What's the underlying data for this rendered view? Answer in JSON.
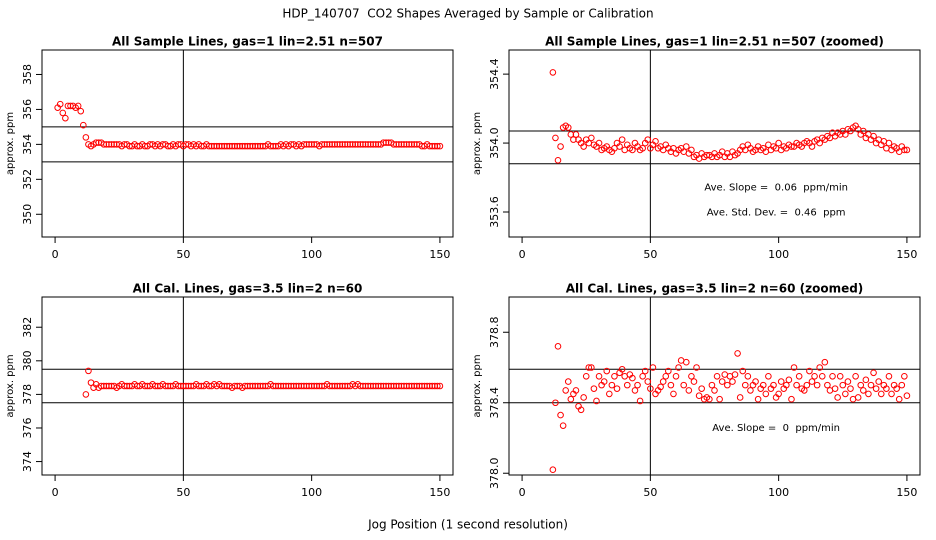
{
  "title": "HDP_140707  CO2 Shapes Averaged by Sample or Calibration",
  "x_axis_label": "Jog Position (1 second resolution)",
  "chart_data": [
    {
      "type": "scatter",
      "title": "All Sample Lines, gas=1 lin=2.51 n=507",
      "y_label": "approx. ppm",
      "color": "red",
      "xlim": [
        -5.1,
        155.1
      ],
      "ylim": [
        348.7,
        359.4
      ],
      "xticks": [
        0,
        50,
        100,
        150
      ],
      "yticks": [
        350,
        352,
        354,
        356,
        358
      ],
      "hlines": [
        355,
        353
      ],
      "vline": 50,
      "annotations": [],
      "x": [
        1,
        2,
        3,
        4,
        5,
        6,
        7,
        8,
        9,
        10,
        11,
        12,
        13,
        14,
        15,
        16,
        17,
        18,
        19,
        20,
        21,
        22,
        23,
        24,
        25,
        26,
        27,
        28,
        29,
        30,
        31,
        32,
        33,
        34,
        35,
        36,
        37,
        38,
        39,
        40,
        41,
        42,
        43,
        44,
        45,
        46,
        47,
        48,
        49,
        50,
        51,
        52,
        53,
        54,
        55,
        56,
        57,
        58,
        59,
        60,
        61,
        62,
        63,
        64,
        65,
        66,
        67,
        68,
        69,
        70,
        71,
        72,
        73,
        74,
        75,
        76,
        77,
        78,
        79,
        80,
        81,
        82,
        83,
        84,
        85,
        86,
        87,
        88,
        89,
        90,
        91,
        92,
        93,
        94,
        95,
        96,
        97,
        98,
        99,
        100,
        101,
        102,
        103,
        104,
        105,
        106,
        107,
        108,
        109,
        110,
        111,
        112,
        113,
        114,
        115,
        116,
        117,
        118,
        119,
        120,
        121,
        122,
        123,
        124,
        125,
        126,
        127,
        128,
        129,
        130,
        131,
        132,
        133,
        134,
        135,
        136,
        137,
        138,
        139,
        140,
        141,
        142,
        143,
        144,
        145,
        146,
        147,
        148,
        149,
        150
      ],
      "values": [
        356.1,
        356.3,
        355.8,
        355.5,
        356.2,
        356.2,
        356.2,
        356.1,
        356.2,
        355.9,
        355.1,
        354.4,
        354.0,
        353.9,
        354.0,
        354.1,
        354.1,
        354.1,
        354.0,
        354.0,
        354.0,
        354.0,
        354.0,
        354.0,
        354.0,
        353.9,
        354.0,
        354.0,
        353.9,
        353.9,
        354.0,
        353.9,
        353.9,
        354.0,
        353.9,
        353.9,
        354.0,
        354.0,
        353.9,
        354.0,
        353.9,
        354.0,
        354.0,
        353.9,
        353.9,
        354.0,
        353.9,
        354.0,
        354.0,
        353.9,
        354.0,
        354.0,
        353.9,
        354.0,
        353.9,
        354.0,
        353.9,
        353.9,
        354.0,
        353.9,
        353.9,
        353.9,
        353.9,
        353.9,
        353.9,
        353.9,
        353.9,
        353.9,
        353.9,
        353.9,
        353.9,
        353.9,
        353.9,
        353.9,
        353.9,
        353.9,
        353.9,
        353.9,
        353.9,
        353.9,
        353.9,
        353.9,
        354.0,
        353.9,
        353.9,
        353.9,
        353.9,
        354.0,
        353.9,
        354.0,
        353.9,
        354.0,
        354.0,
        353.9,
        354.0,
        353.9,
        354.0,
        354.0,
        354.0,
        354.0,
        354.0,
        354.0,
        353.9,
        354.0,
        354.0,
        354.0,
        354.0,
        354.0,
        354.0,
        354.0,
        354.0,
        354.0,
        354.0,
        354.0,
        354.0,
        354.0,
        354.0,
        354.0,
        354.0,
        354.0,
        354.0,
        354.0,
        354.0,
        354.0,
        354.0,
        354.0,
        354.0,
        354.1,
        354.1,
        354.1,
        354.1,
        354.0,
        354.0,
        354.0,
        354.0,
        354.0,
        354.0,
        354.0,
        354.0,
        354.0,
        354.0,
        354.0,
        353.9,
        353.9,
        354.0,
        353.9,
        353.9,
        353.9,
        353.9,
        353.9
      ]
    },
    {
      "type": "scatter",
      "title": "All Sample Lines, gas=1 lin=2.51 n=507 (zoomed)",
      "y_label": "approx. ppm",
      "color": "red",
      "xlim": [
        -5.1,
        155.1
      ],
      "ylim": [
        353.455,
        354.54
      ],
      "xticks": [
        0,
        50,
        100,
        150
      ],
      "yticks": [
        353.6,
        {
          "value": 354,
          "label": "354.0"
        },
        354.4
      ],
      "hlines": [
        354.07,
        353.88
      ],
      "vline": 50,
      "annotations": [
        "Ave. Slope =  0.06  ppm/min",
        "Ave. Std. Dev. =  0.46  ppm"
      ],
      "x": [
        12,
        13,
        14,
        15,
        16,
        17,
        18,
        19,
        20,
        21,
        22,
        23,
        24,
        25,
        26,
        27,
        28,
        29,
        30,
        31,
        32,
        33,
        34,
        35,
        36,
        37,
        38,
        39,
        40,
        41,
        42,
        43,
        44,
        45,
        46,
        47,
        48,
        49,
        50,
        51,
        52,
        53,
        54,
        55,
        56,
        57,
        58,
        59,
        60,
        61,
        62,
        63,
        64,
        65,
        66,
        67,
        68,
        69,
        70,
        71,
        72,
        73,
        74,
        75,
        76,
        77,
        78,
        79,
        80,
        81,
        82,
        83,
        84,
        85,
        86,
        87,
        88,
        89,
        90,
        91,
        92,
        93,
        94,
        95,
        96,
        97,
        98,
        99,
        100,
        101,
        102,
        103,
        104,
        105,
        106,
        107,
        108,
        109,
        110,
        111,
        112,
        113,
        114,
        115,
        116,
        117,
        118,
        119,
        120,
        121,
        122,
        123,
        124,
        125,
        126,
        127,
        128,
        129,
        130,
        131,
        132,
        133,
        134,
        135,
        136,
        137,
        138,
        139,
        140,
        141,
        142,
        143,
        144,
        145,
        146,
        147,
        148,
        149,
        150
      ],
      "values": [
        354.41,
        354.03,
        353.9,
        353.98,
        354.09,
        354.1,
        354.09,
        354.05,
        354.02,
        354.05,
        354.02,
        354.0,
        353.98,
        354.02,
        354.0,
        354.03,
        353.99,
        353.98,
        354.0,
        353.96,
        353.97,
        353.98,
        353.96,
        353.95,
        353.97,
        354.0,
        353.98,
        354.02,
        353.96,
        353.99,
        353.97,
        353.96,
        354.0,
        353.98,
        353.96,
        353.97,
        354.0,
        354.02,
        353.97,
        353.99,
        354.01,
        353.97,
        353.98,
        353.96,
        353.99,
        353.97,
        353.95,
        353.97,
        353.94,
        353.96,
        353.97,
        353.95,
        353.98,
        353.94,
        353.96,
        353.92,
        353.93,
        353.91,
        353.94,
        353.92,
        353.93,
        353.93,
        353.92,
        353.94,
        353.92,
        353.93,
        353.95,
        353.92,
        353.94,
        353.92,
        353.95,
        353.93,
        353.94,
        353.96,
        353.98,
        353.96,
        353.99,
        353.97,
        353.95,
        353.96,
        353.98,
        353.96,
        353.97,
        353.95,
        353.99,
        353.96,
        353.98,
        353.97,
        354.0,
        353.96,
        353.98,
        353.97,
        353.99,
        353.98,
        353.98,
        354.0,
        353.99,
        353.98,
        354.0,
        354.01,
        354.0,
        353.98,
        354.01,
        354.02,
        354.0,
        354.03,
        354.02,
        354.04,
        354.03,
        354.06,
        354.04,
        354.06,
        354.05,
        354.07,
        354.05,
        354.08,
        354.07,
        354.09,
        354.1,
        354.08,
        354.05,
        354.07,
        354.03,
        354.05,
        354.02,
        354.04,
        354.0,
        354.02,
        353.99,
        354.01,
        353.97,
        354.0,
        353.96,
        353.98,
        353.97,
        353.95,
        353.98,
        353.96,
        353.96
      ]
    },
    {
      "type": "scatter",
      "title": "All Cal. Lines, gas=3.5 lin=2 n=60",
      "y_label": "approx. ppm",
      "color": "red",
      "xlim": [
        -5.1,
        155.1
      ],
      "ylim": [
        373.2,
        383.8
      ],
      "xticks": [
        0,
        50,
        100,
        150
      ],
      "yticks": [
        374,
        376,
        378,
        380,
        382
      ],
      "hlines": [
        379.5,
        377.5
      ],
      "vline": 50,
      "annotations": [],
      "x": [
        12,
        13,
        14,
        15,
        16,
        17,
        18,
        19,
        20,
        21,
        22,
        23,
        24,
        25,
        26,
        27,
        28,
        29,
        30,
        31,
        32,
        33,
        34,
        35,
        36,
        37,
        38,
        39,
        40,
        41,
        42,
        43,
        44,
        45,
        46,
        47,
        48,
        49,
        50,
        51,
        52,
        53,
        54,
        55,
        56,
        57,
        58,
        59,
        60,
        61,
        62,
        63,
        64,
        65,
        66,
        67,
        68,
        69,
        70,
        71,
        72,
        73,
        74,
        75,
        76,
        77,
        78,
        79,
        80,
        81,
        82,
        83,
        84,
        85,
        86,
        87,
        88,
        89,
        90,
        91,
        92,
        93,
        94,
        95,
        96,
        97,
        98,
        99,
        100,
        101,
        102,
        103,
        104,
        105,
        106,
        107,
        108,
        109,
        110,
        111,
        112,
        113,
        114,
        115,
        116,
        117,
        118,
        119,
        120,
        121,
        122,
        123,
        124,
        125,
        126,
        127,
        128,
        129,
        130,
        131,
        132,
        133,
        134,
        135,
        136,
        137,
        138,
        139,
        140,
        141,
        142,
        143,
        144,
        145,
        146,
        147,
        148,
        149,
        150
      ],
      "values": [
        378.0,
        379.4,
        378.7,
        378.4,
        378.6,
        378.4,
        378.5,
        378.5,
        378.5,
        378.5,
        378.5,
        378.5,
        378.4,
        378.5,
        378.6,
        378.5,
        378.5,
        378.5,
        378.5,
        378.6,
        378.5,
        378.5,
        378.6,
        378.5,
        378.5,
        378.5,
        378.6,
        378.5,
        378.5,
        378.5,
        378.6,
        378.5,
        378.5,
        378.5,
        378.5,
        378.6,
        378.5,
        378.5,
        378.5,
        378.5,
        378.5,
        378.5,
        378.5,
        378.6,
        378.5,
        378.5,
        378.5,
        378.6,
        378.5,
        378.5,
        378.6,
        378.5,
        378.6,
        378.5,
        378.5,
        378.5,
        378.5,
        378.4,
        378.5,
        378.5,
        378.5,
        378.4,
        378.5,
        378.5,
        378.5,
        378.5,
        378.5,
        378.5,
        378.5,
        378.5,
        378.5,
        378.5,
        378.6,
        378.5,
        378.5,
        378.5,
        378.5,
        378.5,
        378.5,
        378.5,
        378.5,
        378.5,
        378.5,
        378.5,
        378.5,
        378.5,
        378.5,
        378.5,
        378.5,
        378.5,
        378.5,
        378.5,
        378.5,
        378.5,
        378.6,
        378.5,
        378.5,
        378.5,
        378.5,
        378.5,
        378.5,
        378.5,
        378.5,
        378.5,
        378.6,
        378.5,
        378.6,
        378.5,
        378.5,
        378.5,
        378.5,
        378.5,
        378.5,
        378.5,
        378.5,
        378.5,
        378.5,
        378.5,
        378.5,
        378.5,
        378.5,
        378.5,
        378.5,
        378.5,
        378.5,
        378.5,
        378.5,
        378.5,
        378.5,
        378.5,
        378.5,
        378.5,
        378.5,
        378.5,
        378.5,
        378.5,
        378.5,
        378.5,
        378.5
      ]
    },
    {
      "type": "scatter",
      "title": "All Cal. Lines, gas=3.5 lin=2 n=60 (zoomed)",
      "y_label": "approx. ppm",
      "color": "red",
      "xlim": [
        -5.1,
        155.1
      ],
      "ylim": [
        377.99,
        379.0
      ],
      "xticks": [
        0,
        50,
        100,
        150
      ],
      "yticks": [
        {
          "value": 378,
          "label": "378.0"
        },
        378.4,
        378.8
      ],
      "hlines": [
        378.59,
        378.4
      ],
      "vline": 50,
      "annotations": [
        "Ave. Slope =  0  ppm/min"
      ],
      "x": [
        12,
        13,
        14,
        15,
        16,
        17,
        18,
        19,
        20,
        21,
        22,
        23,
        24,
        25,
        26,
        27,
        28,
        29,
        30,
        31,
        32,
        33,
        34,
        35,
        36,
        37,
        38,
        39,
        40,
        41,
        42,
        43,
        44,
        45,
        46,
        47,
        48,
        49,
        50,
        51,
        52,
        53,
        54,
        55,
        56,
        57,
        58,
        59,
        60,
        61,
        62,
        63,
        64,
        65,
        66,
        67,
        68,
        69,
        70,
        71,
        72,
        73,
        74,
        75,
        76,
        77,
        78,
        79,
        80,
        81,
        82,
        83,
        84,
        85,
        86,
        87,
        88,
        89,
        90,
        91,
        92,
        93,
        94,
        95,
        96,
        97,
        98,
        99,
        100,
        101,
        102,
        103,
        104,
        105,
        106,
        107,
        108,
        109,
        110,
        111,
        112,
        113,
        114,
        115,
        116,
        117,
        118,
        119,
        120,
        121,
        122,
        123,
        124,
        125,
        126,
        127,
        128,
        129,
        130,
        131,
        132,
        133,
        134,
        135,
        136,
        137,
        138,
        139,
        140,
        141,
        142,
        143,
        144,
        145,
        146,
        147,
        148,
        149,
        150
      ],
      "values": [
        378.02,
        378.4,
        378.72,
        378.33,
        378.27,
        378.47,
        378.52,
        378.42,
        378.45,
        378.47,
        378.38,
        378.36,
        378.43,
        378.55,
        378.6,
        378.6,
        378.48,
        378.41,
        378.55,
        378.5,
        378.52,
        378.58,
        378.45,
        378.5,
        378.55,
        378.48,
        378.57,
        378.59,
        378.55,
        378.5,
        378.56,
        378.54,
        378.47,
        378.5,
        378.41,
        378.55,
        378.58,
        378.52,
        378.48,
        378.6,
        378.45,
        378.47,
        378.49,
        378.52,
        378.55,
        378.58,
        378.5,
        378.45,
        378.55,
        378.6,
        378.64,
        378.5,
        378.63,
        378.47,
        378.55,
        378.52,
        378.6,
        378.44,
        378.48,
        378.42,
        378.43,
        378.42,
        378.5,
        378.47,
        378.55,
        378.42,
        378.52,
        378.56,
        378.5,
        378.55,
        378.52,
        378.56,
        378.68,
        378.43,
        378.58,
        378.5,
        378.55,
        378.47,
        378.5,
        378.52,
        378.42,
        378.48,
        378.5,
        378.45,
        378.55,
        378.48,
        378.5,
        378.43,
        378.45,
        378.52,
        378.48,
        378.5,
        378.53,
        378.42,
        378.6,
        378.5,
        378.55,
        378.48,
        378.47,
        378.5,
        378.58,
        378.52,
        378.55,
        378.5,
        378.6,
        378.55,
        378.63,
        378.5,
        378.47,
        378.55,
        378.48,
        378.43,
        378.55,
        378.5,
        378.45,
        378.52,
        378.48,
        378.42,
        378.55,
        378.43,
        378.5,
        378.47,
        378.53,
        378.45,
        378.5,
        378.57,
        378.48,
        378.52,
        378.45,
        378.5,
        378.48,
        378.55,
        378.45,
        378.5,
        378.48,
        378.42,
        378.5,
        378.55,
        378.44
      ]
    }
  ]
}
